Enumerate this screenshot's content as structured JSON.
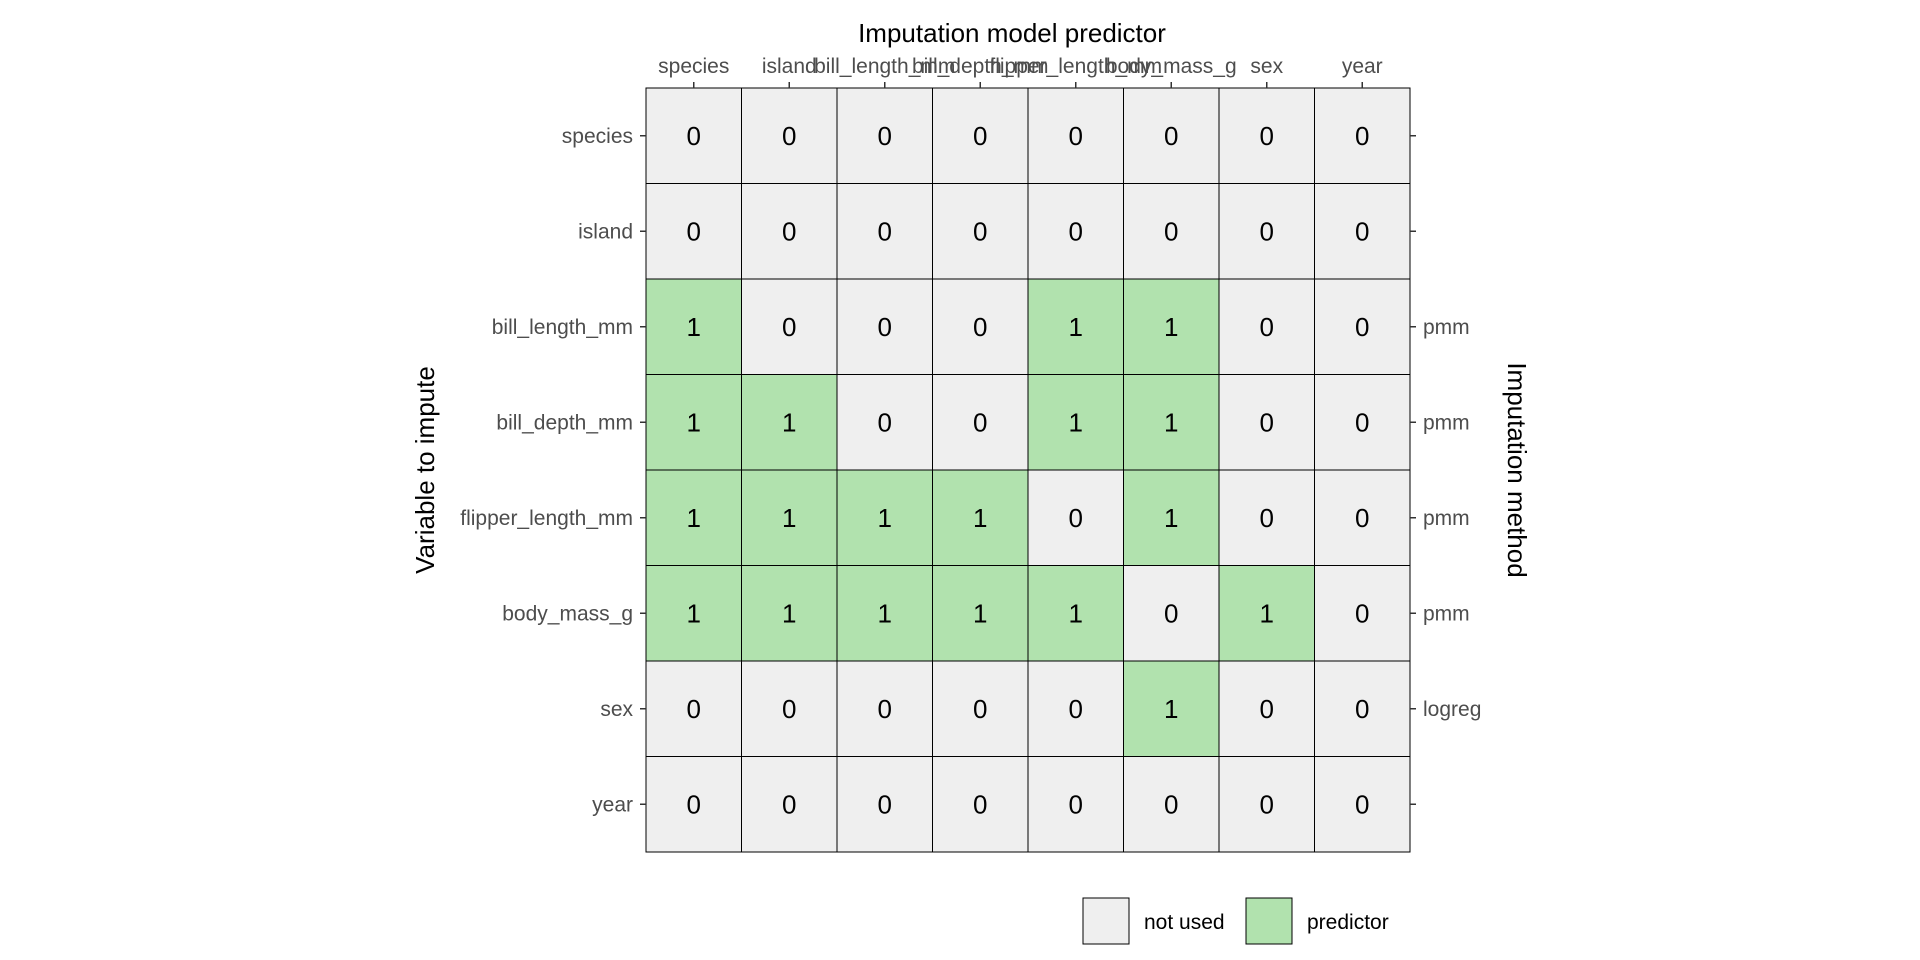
{
  "chart_data": {
    "type": "heatmap",
    "title": "Imputation model predictor",
    "xlabel": "Imputation model predictor",
    "ylabel": "Variable to impute",
    "y2label": "Imputation method",
    "columns": [
      "species",
      "island",
      "bill_length_mm",
      "bill_depth_mm",
      "flipper_length_mm",
      "body_mass_g",
      "sex",
      "year"
    ],
    "rows": [
      "species",
      "island",
      "bill_length_mm",
      "bill_depth_mm",
      "flipper_length_mm",
      "body_mass_g",
      "sex",
      "year"
    ],
    "methods": [
      "",
      "",
      "pmm",
      "pmm",
      "pmm",
      "pmm",
      "logreg",
      ""
    ],
    "values": [
      [
        0,
        0,
        0,
        0,
        0,
        0,
        0,
        0
      ],
      [
        0,
        0,
        0,
        0,
        0,
        0,
        0,
        0
      ],
      [
        1,
        0,
        0,
        0,
        1,
        1,
        0,
        0
      ],
      [
        1,
        1,
        0,
        0,
        1,
        1,
        0,
        0
      ],
      [
        1,
        1,
        1,
        1,
        0,
        1,
        0,
        0
      ],
      [
        1,
        1,
        1,
        1,
        1,
        0,
        1,
        0
      ],
      [
        0,
        0,
        0,
        0,
        0,
        1,
        0,
        0
      ],
      [
        0,
        0,
        0,
        0,
        0,
        0,
        0,
        0
      ]
    ],
    "legend": {
      "position": "bottom",
      "items": [
        {
          "label": "not used",
          "color": "#efefef"
        },
        {
          "label": "predictor",
          "color": "#b1e2ae"
        }
      ]
    },
    "colors": {
      "not_used": "#efefef",
      "predictor": "#b1e2ae",
      "border": "#000000"
    },
    "grid": false
  }
}
